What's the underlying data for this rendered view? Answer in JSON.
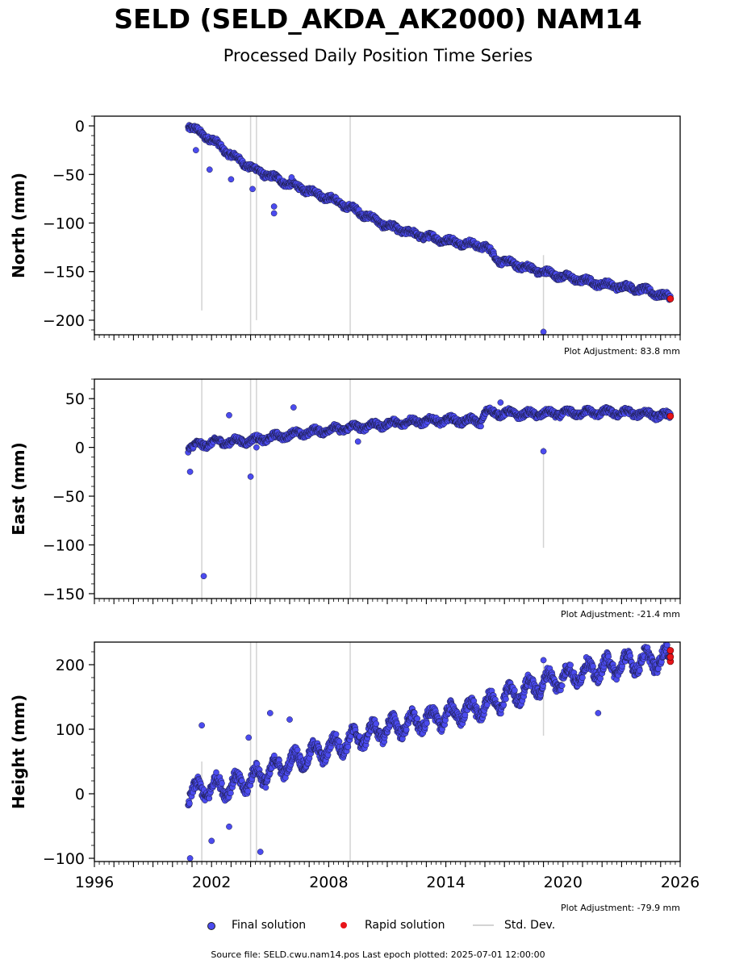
{
  "header": {
    "title": "SELD (SELD_AKDA_AK2000) NAM14",
    "subtitle": "Processed Daily Position Time Series"
  },
  "footer": {
    "source": "Source file: SELD.cwu.nam14.pos  Last epoch plotted: 2025-07-01 12:00:00"
  },
  "legend": {
    "final": "Final solution",
    "rapid": "Rapid solution",
    "stddev": "Std. Dev."
  },
  "colors": {
    "final": "#4b4bef",
    "rapid": "#e8141a",
    "stddev": "#d3d3d3"
  },
  "chart_data": [
    {
      "type": "scatter",
      "ylabel": "North (mm)",
      "adjustment": "Plot Adjustment: 83.8 mm",
      "xlim": [
        1996,
        2026
      ],
      "ylim": [
        -215,
        10
      ],
      "yticks": [
        0,
        -50,
        -100,
        -150,
        -200
      ],
      "ytick_labels": [
        "0",
        "−50",
        "−100",
        "−150",
        "−200"
      ],
      "trend_points": [
        [
          2000.8,
          0
        ],
        [
          2002.0,
          -14
        ],
        [
          2003.0,
          -30
        ],
        [
          2004.2,
          -45
        ],
        [
          2006.0,
          -60
        ],
        [
          2008.0,
          -74
        ],
        [
          2009.5,
          -88
        ],
        [
          2011.0,
          -103
        ],
        [
          2012.5,
          -112
        ],
        [
          2014.0,
          -118
        ],
        [
          2016.0,
          -124
        ],
        [
          2016.7,
          -138
        ],
        [
          2018.5,
          -148
        ],
        [
          2020.0,
          -155
        ],
        [
          2022.0,
          -163
        ],
        [
          2024.0,
          -168
        ],
        [
          2025.5,
          -177
        ]
      ],
      "outliers": [
        [
          2001.2,
          -25
        ],
        [
          2001.9,
          -45
        ],
        [
          2003.0,
          -55
        ],
        [
          2004.1,
          -65
        ],
        [
          2005.2,
          -90
        ],
        [
          2005.2,
          -83
        ],
        [
          2006.1,
          -53
        ],
        [
          2019.0,
          -212
        ]
      ],
      "rapid": [
        [
          2025.5,
          -178
        ]
      ],
      "std_dev": [
        [
          2001.5,
          -190,
          0
        ],
        [
          2004.0,
          -215,
          10
        ],
        [
          2004.3,
          -200,
          10
        ],
        [
          2009.1,
          -215,
          10
        ],
        [
          2019.0,
          -212,
          -133
        ]
      ]
    },
    {
      "type": "scatter",
      "ylabel": "East (mm)",
      "adjustment": "Plot Adjustment: -21.4 mm",
      "xlim": [
        1996,
        2026
      ],
      "ylim": [
        -155,
        70
      ],
      "yticks": [
        50,
        0,
        -50,
        -100,
        -150
      ],
      "ytick_labels": [
        "50",
        "0",
        "−50",
        "−100",
        "−150"
      ],
      "trend_points": [
        [
          2000.8,
          0
        ],
        [
          2002.0,
          5
        ],
        [
          2004.0,
          7
        ],
        [
          2006.0,
          13
        ],
        [
          2008.0,
          18
        ],
        [
          2010.0,
          22
        ],
        [
          2012.0,
          26
        ],
        [
          2014.0,
          28
        ],
        [
          2015.8,
          27
        ],
        [
          2016.0,
          36
        ],
        [
          2018.0,
          34
        ],
        [
          2020.0,
          35
        ],
        [
          2022.0,
          36
        ],
        [
          2024.0,
          35
        ],
        [
          2025.5,
          32
        ]
      ],
      "outliers": [
        [
          2000.9,
          -25
        ],
        [
          2001.6,
          -132
        ],
        [
          2002.9,
          33
        ],
        [
          2004.0,
          -30
        ],
        [
          2006.2,
          41
        ],
        [
          2009.5,
          6
        ],
        [
          2016.8,
          46
        ],
        [
          2019.0,
          -4
        ],
        [
          2004.3,
          0
        ]
      ],
      "rapid": [
        [
          2025.5,
          32
        ]
      ],
      "std_dev": [
        [
          2001.5,
          -155,
          70
        ],
        [
          2004.0,
          -155,
          70
        ],
        [
          2004.3,
          -155,
          70
        ],
        [
          2009.1,
          -155,
          70
        ],
        [
          2019.0,
          -103,
          0
        ]
      ]
    },
    {
      "type": "scatter",
      "ylabel": "Height (mm)",
      "adjustment": "Plot Adjustment: -79.9 mm",
      "xlim": [
        1996,
        2026
      ],
      "ylim": [
        -105,
        235
      ],
      "yticks": [
        200,
        100,
        0,
        -100
      ],
      "ytick_labels": [
        "200",
        "100",
        "0",
        "−100"
      ],
      "xticks": [
        1996,
        2002,
        2008,
        2014,
        2020,
        2026
      ],
      "xtick_labels": [
        "1996",
        "2002",
        "2008",
        "2014",
        "2020",
        "2026"
      ],
      "trend_points": [
        [
          2000.8,
          0
        ],
        [
          2002.0,
          10
        ],
        [
          2003.0,
          12
        ],
        [
          2004.0,
          22
        ],
        [
          2005.0,
          35
        ],
        [
          2006.0,
          48
        ],
        [
          2007.0,
          60
        ],
        [
          2008.0,
          70
        ],
        [
          2009.0,
          82
        ],
        [
          2010.0,
          92
        ],
        [
          2011.0,
          102
        ],
        [
          2012.0,
          108
        ],
        [
          2013.0,
          115
        ],
        [
          2014.0,
          120
        ],
        [
          2015.0,
          128
        ],
        [
          2016.0,
          135
        ],
        [
          2017.0,
          148
        ],
        [
          2018.0,
          160
        ],
        [
          2019.0,
          172
        ],
        [
          2020.0,
          180
        ],
        [
          2021.0,
          188
        ],
        [
          2022.0,
          195
        ],
        [
          2023.0,
          200
        ],
        [
          2024.0,
          206
        ],
        [
          2025.5,
          210
        ]
      ],
      "outliers": [
        [
          2000.9,
          -100
        ],
        [
          2001.5,
          106
        ],
        [
          2002.0,
          -73
        ],
        [
          2002.9,
          -51
        ],
        [
          2003.9,
          87
        ],
        [
          2004.5,
          -90
        ],
        [
          2005.0,
          125
        ],
        [
          2006.0,
          115
        ],
        [
          2021.8,
          125
        ],
        [
          2019.0,
          207
        ]
      ],
      "rapid": [
        [
          2025.5,
          205
        ],
        [
          2025.5,
          212
        ],
        [
          2025.5,
          222
        ]
      ],
      "std_dev": [
        [
          2001.5,
          -105,
          50
        ],
        [
          2004.0,
          -105,
          235
        ],
        [
          2004.3,
          -105,
          235
        ],
        [
          2009.1,
          -105,
          235
        ],
        [
          2019.0,
          90,
          205
        ]
      ]
    }
  ]
}
